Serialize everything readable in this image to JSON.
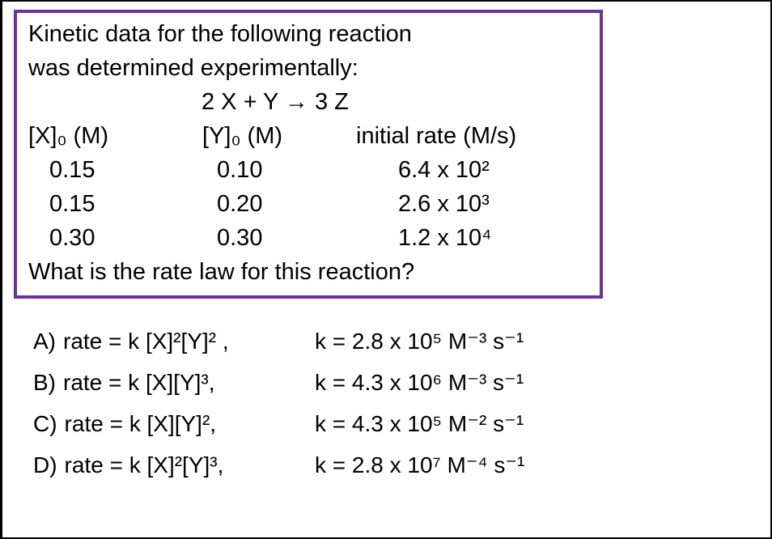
{
  "question_box": {
    "intro_line1": "Kinetic data for the following reaction",
    "intro_line2": "was determined experimentally:",
    "equation": "2 X + Y → 3 Z",
    "table": {
      "headers": [
        "[X]₀ (M)",
        "[Y]₀ (M)",
        "initial rate (M/s)"
      ],
      "rows": [
        [
          "0.15",
          "0.10",
          "6.4 x 10²"
        ],
        [
          "0.15",
          "0.20",
          "2.6 x 10³"
        ],
        [
          "0.30",
          "0.30",
          "1.2 x 10⁴"
        ]
      ]
    },
    "question": "What is the rate law for this reaction?"
  },
  "answers": [
    {
      "label": "A)",
      "rate_law": "rate = k [X]²[Y]² ,",
      "k_value": "k = 2.8 x 10⁵ M⁻³ s⁻¹"
    },
    {
      "label": "B)",
      "rate_law": "rate = k [X][Y]³,",
      "k_value": "k = 4.3 x 10⁶ M⁻³ s⁻¹"
    },
    {
      "label": "C)",
      "rate_law": "rate = k [X][Y]²,",
      "k_value": "k = 4.3 x 10⁵ M⁻² s⁻¹"
    },
    {
      "label": "D)",
      "rate_law": "rate = k [X]²[Y]³,",
      "k_value": "k = 2.8 x 10⁷ M⁻⁴ s⁻¹"
    }
  ],
  "colors": {
    "box_border": "#7030A0",
    "text": "#000000",
    "background": "#FFFFFF"
  }
}
